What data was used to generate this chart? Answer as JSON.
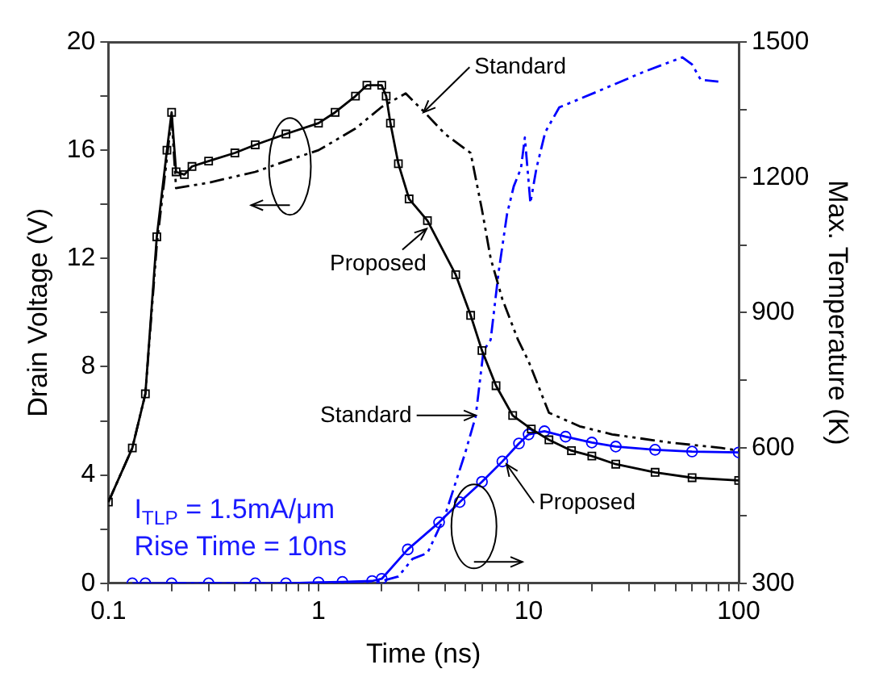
{
  "chart_data": {
    "type": "line",
    "xlabel": "Time (ns)",
    "ylabel": "Drain Voltage (V)",
    "y2label": "Max. Temperature (K)",
    "log": "x",
    "grid": false,
    "legend": false,
    "xlim": [
      0.1,
      100
    ],
    "xticks": [
      {
        "value": 0.1,
        "label": "0.1"
      },
      {
        "value": 0.2,
        "label": null
      },
      {
        "value": 0.3,
        "label": null
      },
      {
        "value": 0.4,
        "label": null
      },
      {
        "value": 0.5,
        "label": null
      },
      {
        "value": 0.6,
        "label": null
      },
      {
        "value": 0.7,
        "label": null
      },
      {
        "value": 0.8,
        "label": null
      },
      {
        "value": 0.9,
        "label": null
      },
      1,
      {
        "value": 2,
        "label": null
      },
      {
        "value": 3,
        "label": null
      },
      {
        "value": 4,
        "label": null
      },
      {
        "value": 5,
        "label": null
      },
      {
        "value": 6,
        "label": null
      },
      {
        "value": 7,
        "label": null
      },
      {
        "value": 8,
        "label": null
      },
      {
        "value": 9,
        "label": null
      },
      10,
      {
        "value": 20,
        "label": null
      },
      {
        "value": 30,
        "label": null
      },
      {
        "value": 40,
        "label": null
      },
      {
        "value": 50,
        "label": null
      },
      {
        "value": 60,
        "label": null
      },
      {
        "value": 70,
        "label": null
      },
      {
        "value": 80,
        "label": null
      },
      {
        "value": 90,
        "label": null
      },
      100
    ],
    "ylim": [
      0,
      20
    ],
    "yticks": [
      0,
      {
        "value": 2,
        "label": null
      },
      4,
      {
        "value": 6,
        "label": null
      },
      8,
      {
        "value": 10,
        "label": null
      },
      12,
      {
        "value": 14,
        "label": null
      },
      16,
      {
        "value": 18,
        "label": null
      },
      20
    ],
    "y2lim": [
      300,
      1500
    ],
    "y2ticks": [
      300,
      {
        "value": 450,
        "label": null
      },
      600,
      {
        "value": 750,
        "label": null
      },
      900,
      {
        "value": 1050,
        "label": null
      },
      1200,
      {
        "value": 1350,
        "label": null
      },
      1500
    ],
    "series": [
      {
        "color": "#000000",
        "marker": "square",
        "line_style": "solid",
        "x": [
          0.1,
          0.13,
          0.15,
          0.17,
          0.19,
          0.2,
          0.21,
          0.23,
          0.25,
          0.3,
          0.4,
          0.5,
          0.7,
          1,
          1.2,
          1.5,
          1.7,
          2,
          2.1,
          2.2,
          2.4,
          2.7,
          3.3,
          4.5,
          5.3,
          6,
          7,
          8.4,
          10.3,
          12.5,
          16,
          20,
          26,
          40,
          60,
          100
        ],
        "values": [
          3,
          5,
          7,
          12.8,
          16,
          17.4,
          15.2,
          15.1,
          15.4,
          15.6,
          15.9,
          16.2,
          16.6,
          17,
          17.4,
          18,
          18.4,
          18.4,
          18,
          17,
          15.5,
          14.2,
          13.4,
          11.4,
          9.9,
          8.6,
          7.3,
          6.2,
          5.7,
          5.3,
          4.9,
          4.7,
          4.4,
          4.1,
          3.9,
          3.8
        ]
      },
      {
        "color": "#000000",
        "marker": "none",
        "line_style": "dashed",
        "x": [
          0.1,
          0.13,
          0.15,
          0.17,
          0.2,
          0.21,
          0.3,
          0.5,
          0.7,
          1,
          1.5,
          2,
          2.6,
          3.2,
          4,
          5.3,
          6,
          6.6,
          7.5,
          8.9,
          10,
          12.5,
          17.5,
          25,
          47,
          83,
          100
        ],
        "values": [
          3,
          5,
          7,
          12.5,
          17.2,
          14.6,
          14.8,
          15.2,
          15.6,
          16,
          16.8,
          17.6,
          18.1,
          17.4,
          16.6,
          15.9,
          13.8,
          12,
          10.5,
          9,
          8.2,
          6.3,
          5.8,
          5.5,
          5.2,
          5,
          4.9
        ]
      },
      {
        "color": "#0000ff",
        "marker": "none",
        "line_style": "dashed",
        "axis": "y2",
        "x": [
          0.2,
          0.5,
          1,
          2,
          2.4,
          2.8,
          3.3,
          4,
          5,
          5.6,
          6.1,
          6.6,
          7.2,
          7.9,
          8.5,
          9.2,
          9.6,
          10.2,
          10.9,
          12,
          14,
          21,
          35,
          54,
          60,
          66,
          80
        ],
        "values": [
          300,
          300,
          300,
          305,
          315,
          354,
          367,
          450,
          590,
          670,
          815,
          840,
          990,
          1119,
          1180,
          1220,
          1288,
          1143,
          1220,
          1300,
          1355,
          1389,
          1433,
          1466,
          1450,
          1416,
          1412
        ]
      },
      {
        "color": "#0000ff",
        "marker": "circle",
        "line_style": "solid",
        "axis": "y2",
        "x": [
          0.13,
          0.15,
          0.2,
          0.3,
          0.5,
          0.7,
          1,
          1.3,
          1.8,
          2,
          2.66,
          3.75,
          4.7,
          6,
          7.5,
          9,
          10,
          11.9,
          15,
          20,
          26,
          40,
          60,
          100
        ],
        "values": [
          300,
          300,
          300,
          300,
          300,
          300,
          302,
          303,
          305,
          310,
          375,
          435,
          480,
          525,
          570,
          610,
          630,
          637,
          625,
          612,
          603,
          596,
          592,
          590
        ]
      }
    ],
    "annotations": [
      {
        "text": "Standard",
        "x": 3.16,
        "y": 17.4
      },
      {
        "text": "Proposed",
        "x": 3.27,
        "y": 13.1
      },
      {
        "text": "Standard",
        "x": 5.6,
        "y": 6.2
      },
      {
        "text": "Proposed",
        "x": 7.85,
        "y": 4.4
      },
      "I$_{TLP}$ = 1.5mA/μm",
      "Rise Time = 10ns"
    ]
  }
}
